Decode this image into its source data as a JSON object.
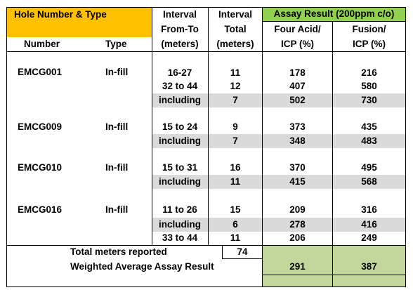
{
  "colors": {
    "header_orange": "#FFC000",
    "header_green": "#92D050",
    "footer_green": "#C3D69B",
    "row_shade": "#DADADA"
  },
  "header": {
    "hole_group": "Hole Number & Type",
    "interval_from_to": [
      "Interval",
      "From-To",
      "(meters)"
    ],
    "interval_total": [
      "Interval",
      "Total",
      "(meters)"
    ],
    "assay_group": "Assay Result (200ppm c/o)",
    "four_acid": [
      "Four Acid/",
      "ICP (%)"
    ],
    "fusion": [
      "Fusion/",
      "ICP (%)"
    ],
    "number": "Number",
    "type": "Type"
  },
  "rows": [
    {
      "number": "EMCG001",
      "type": "In-fill",
      "interval": "16-27",
      "total": "11",
      "four_acid": "178",
      "fusion": "216",
      "shaded": false
    },
    {
      "number": "",
      "type": "",
      "interval": "32 to 44",
      "total": "12",
      "four_acid": "407",
      "fusion": "580",
      "shaded": false
    },
    {
      "number": "",
      "type": "",
      "interval": "including",
      "total": "7",
      "four_acid": "502",
      "fusion": "730",
      "shaded": true
    },
    {
      "number": "EMCG009",
      "type": "In-fill",
      "interval": "15 to 24",
      "total": "9",
      "four_acid": "373",
      "fusion": "435",
      "shaded": false
    },
    {
      "number": "",
      "type": "",
      "interval": "including",
      "total": "7",
      "four_acid": "348",
      "fusion": "483",
      "shaded": true
    },
    {
      "number": "EMCG010",
      "type": "In-fill",
      "interval": "15 to 31",
      "total": "16",
      "four_acid": "370",
      "fusion": "495",
      "shaded": false
    },
    {
      "number": "",
      "type": "",
      "interval": "including",
      "total": "11",
      "four_acid": "415",
      "fusion": "568",
      "shaded": true
    },
    {
      "number": "EMCG016",
      "type": "In-fill",
      "interval": "11 to 26",
      "total": "15",
      "four_acid": "209",
      "fusion": "316",
      "shaded": false
    },
    {
      "number": "",
      "type": "",
      "interval": "including",
      "total": "6",
      "four_acid": "278",
      "fusion": "416",
      "shaded": true
    },
    {
      "number": "",
      "type": "",
      "interval": "33 to 44",
      "total": "11",
      "four_acid": "206",
      "fusion": "249",
      "shaded": false
    }
  ],
  "footer": {
    "total_label": "Total meters reported",
    "total_value": "74",
    "weighted_label": "Weighted Average Assay Result",
    "weighted_four_acid": "291",
    "weighted_fusion": "387"
  }
}
